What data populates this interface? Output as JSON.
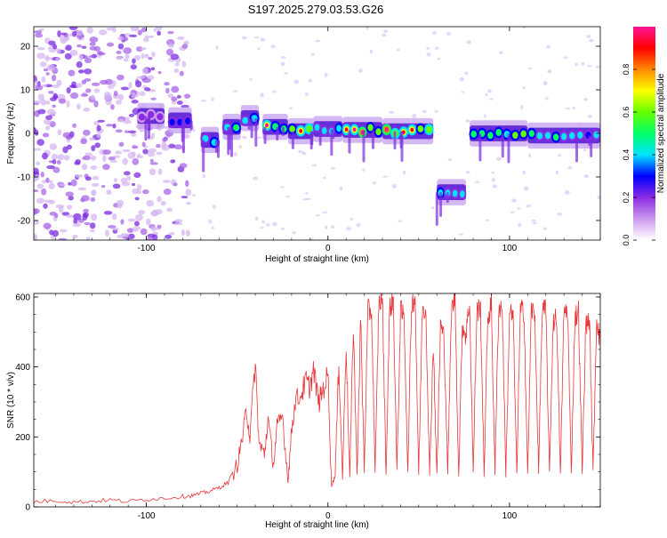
{
  "figure": {
    "title": "S197.2025.279.03.53.G26"
  },
  "chart_data": [
    {
      "type": "heatmap",
      "title": "S197.2025.279.03.53.G26",
      "xlabel": "Height of straight line (km)",
      "ylabel": "Frequency (Hz)",
      "xlim": [
        -162,
        150
      ],
      "ylim": [
        -24.5,
        24.5
      ],
      "xticks": [
        -100,
        0,
        100
      ],
      "yticks": [
        -20,
        -10,
        0,
        10,
        20
      ],
      "tick_labels_x": [
        "-100",
        "0",
        "100"
      ],
      "tick_labels_y": [
        "-20",
        "-10",
        "0",
        "10",
        "20"
      ],
      "colorbar": {
        "label": "Normalized spectral amplitude",
        "range": [
          0.0,
          1.0
        ],
        "ticks": [
          "0.0",
          "0.2",
          "0.4",
          "0.6",
          "0.8"
        ],
        "tick_values": [
          0.0,
          0.2,
          0.4,
          0.6,
          0.8
        ],
        "colors": [
          "#ffffff",
          "#cc99ee",
          "#8a2be2",
          "#0000ff",
          "#00e5ff",
          "#00ff66",
          "#66ff00",
          "#ffff00",
          "#ff8800",
          "#ff0000",
          "#ff1493"
        ]
      },
      "noise_region_x": [
        -162,
        -75
      ],
      "trace_segments": [
        {
          "x": [
            -105,
            -90
          ],
          "freq": 4,
          "amp": 0.35
        },
        {
          "x": [
            -88,
            -75
          ],
          "freq": 3,
          "amp": 0.45
        },
        {
          "x": [
            -70,
            -60
          ],
          "freq": -1.5,
          "amp": 0.55
        },
        {
          "x": [
            -58,
            -48
          ],
          "freq": 1.5,
          "amp": 0.6
        },
        {
          "x": [
            -48,
            -38
          ],
          "freq": 3.5,
          "amp": 0.7
        },
        {
          "x": [
            -36,
            -22
          ],
          "freq": 1.5,
          "amp": 0.9
        },
        {
          "x": [
            -22,
            -8
          ],
          "freq": 0.5,
          "amp": 0.85
        },
        {
          "x": [
            -8,
            8
          ],
          "freq": 1.0,
          "amp": 0.6
        },
        {
          "x": [
            8,
            30
          ],
          "freq": 0.8,
          "amp": 0.95
        },
        {
          "x": [
            30,
            58
          ],
          "freq": 0.5,
          "amp": 0.95
        },
        {
          "x": [
            60,
            76
          ],
          "freq": -13.5,
          "amp": 0.55
        },
        {
          "x": [
            78,
            110
          ],
          "freq": 0.0,
          "amp": 0.75
        },
        {
          "x": [
            110,
            150
          ],
          "freq": -0.5,
          "amp": 0.6
        }
      ]
    },
    {
      "type": "line",
      "xlabel": "Height of straight line (km)",
      "ylabel": "SNR (10 * v/v)",
      "xlim": [
        -162,
        150
      ],
      "ylim": [
        0,
        610
      ],
      "xticks": [
        -100,
        0,
        100
      ],
      "yticks": [
        0,
        200,
        400,
        600
      ],
      "tick_labels_x": [
        "-100",
        "0",
        "100"
      ],
      "tick_labels_y": [
        "0",
        "200",
        "400",
        "600"
      ],
      "series": [
        {
          "name": "SNR",
          "color": "#e8363a",
          "x": [
            -162,
            -150,
            -140,
            -130,
            -120,
            -110,
            -100,
            -90,
            -80,
            -75,
            -70,
            -65,
            -60,
            -55,
            -50,
            -47,
            -45,
            -43,
            -40,
            -38,
            -35,
            -33,
            -30,
            -28,
            -25,
            -22,
            -20,
            -18,
            -15,
            -12,
            -10,
            -8,
            -5,
            -3,
            0,
            2,
            4,
            6,
            8,
            10,
            12,
            14,
            16,
            18,
            20,
            22,
            24,
            26,
            28,
            30,
            32,
            34,
            36,
            38,
            40,
            42,
            44,
            46,
            48,
            50,
            52,
            54,
            56,
            58,
            60,
            62,
            64,
            66,
            68,
            70,
            72,
            74,
            76,
            78,
            80,
            82,
            84,
            86,
            88,
            90,
            92,
            94,
            96,
            98,
            100,
            102,
            104,
            106,
            108,
            110,
            112,
            114,
            116,
            118,
            120,
            122,
            124,
            126,
            128,
            130,
            132,
            134,
            136,
            138,
            140,
            142,
            144,
            146,
            148,
            150
          ],
          "y": [
            15,
            18,
            14,
            16,
            20,
            15,
            22,
            25,
            30,
            32,
            38,
            45,
            55,
            70,
            120,
            200,
            280,
            200,
            415,
            180,
            150,
            250,
            120,
            230,
            260,
            70,
            220,
            300,
            320,
            360,
            340,
            390,
            300,
            330,
            380,
            60,
            90,
            420,
            80,
            470,
            85,
            520,
            90,
            540,
            100,
            560,
            560,
            95,
            580,
            600,
            90,
            570,
            590,
            100,
            560,
            540,
            95,
            580,
            600,
            90,
            570,
            560,
            85,
            470,
            90,
            520,
            480,
            95,
            560,
            600,
            85,
            520,
            490,
            590,
            95,
            560,
            570,
            90,
            540,
            580,
            95,
            570,
            570,
            90,
            560,
            540,
            95,
            560,
            560,
            90,
            570,
            540,
            95,
            560,
            560,
            95,
            530,
            540,
            90,
            560,
            560,
            95,
            540,
            560,
            95,
            520,
            540,
            100,
            550,
            460
          ]
        }
      ]
    }
  ]
}
